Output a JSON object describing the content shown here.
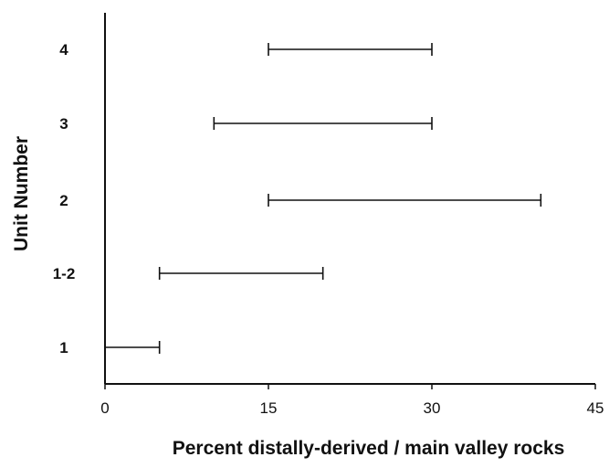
{
  "chart_data": {
    "type": "range-bar",
    "xlabel": "Percent distally-derived / main valley rocks",
    "ylabel": "Unit Number",
    "xlim": [
      0,
      45
    ],
    "xticks": [
      0,
      15,
      30,
      45
    ],
    "grid": false,
    "categories": [
      "1",
      "1-2",
      "2",
      "3",
      "4"
    ],
    "ranges": [
      {
        "unit": "1",
        "min": 0,
        "max": 5
      },
      {
        "unit": "1-2",
        "min": 5,
        "max": 20
      },
      {
        "unit": "2",
        "min": 15,
        "max": 40
      },
      {
        "unit": "3",
        "min": 10,
        "max": 30
      },
      {
        "unit": "4",
        "min": 15,
        "max": 30
      }
    ]
  }
}
